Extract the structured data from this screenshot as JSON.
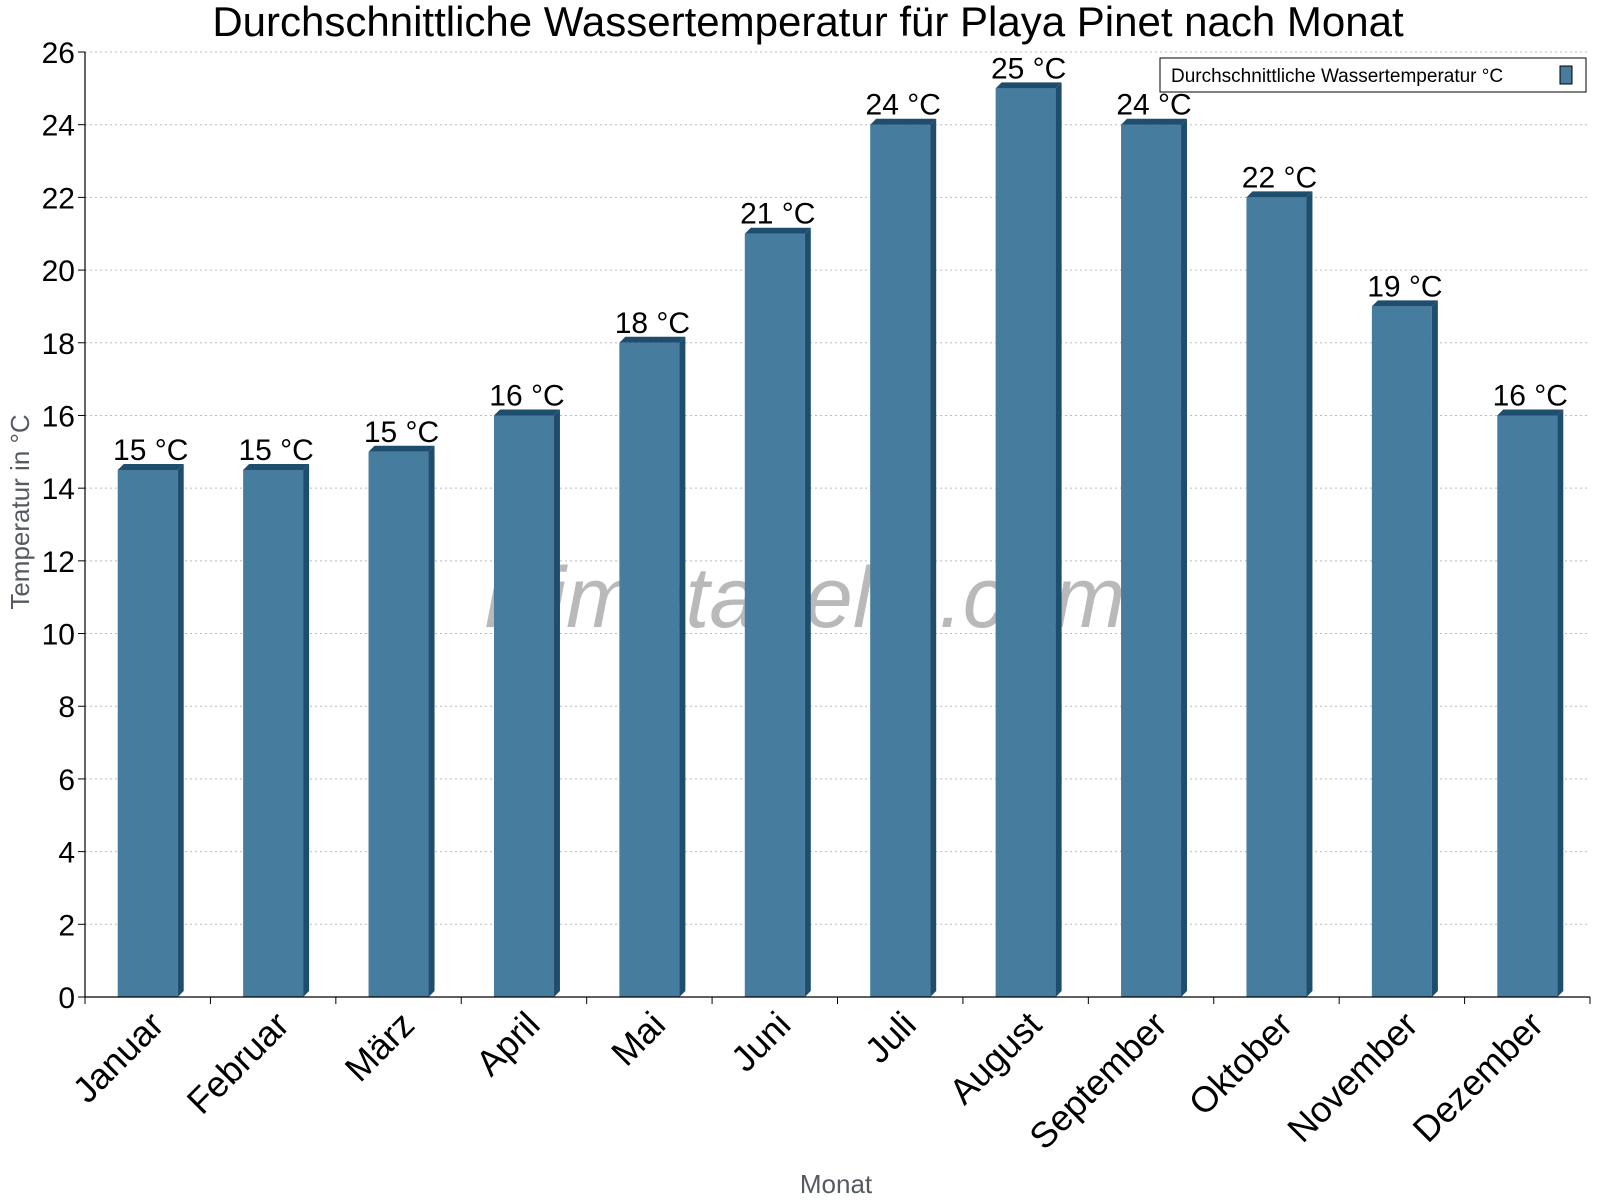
{
  "chart_data": {
    "type": "bar",
    "title": "Durchschnittliche Wassertemperatur für Playa Pinet nach Monat",
    "xlabel": "Monat",
    "ylabel": "Temperatur in °C",
    "categories": [
      "Januar",
      "Februar",
      "März",
      "April",
      "Mai",
      "Juni",
      "Juli",
      "August",
      "September",
      "Oktober",
      "November",
      "Dezember"
    ],
    "series": [
      {
        "name": "Durchschnittliche Wassertemperatur °C",
        "values": [
          14.5,
          14.5,
          15,
          16,
          18,
          21,
          24,
          25,
          24,
          22,
          19,
          16
        ],
        "labels": [
          "15 °C",
          "15 °C",
          "15 °C",
          "16 °C",
          "18 °C",
          "21 °C",
          "24 °C",
          "25 °C",
          "24 °C",
          "22 °C",
          "19 °C",
          "16 °C"
        ]
      }
    ],
    "ylim": [
      0,
      26
    ],
    "yticks": [
      0,
      2,
      4,
      6,
      8,
      10,
      12,
      14,
      16,
      18,
      20,
      22,
      24,
      26
    ],
    "grid": true,
    "legend_position": "top-right",
    "colors": {
      "bar": "#467c9e",
      "bar_side": "#1e4d6d",
      "grid": "#bbbbbb"
    }
  },
  "watermark": "klimatabelle.com"
}
